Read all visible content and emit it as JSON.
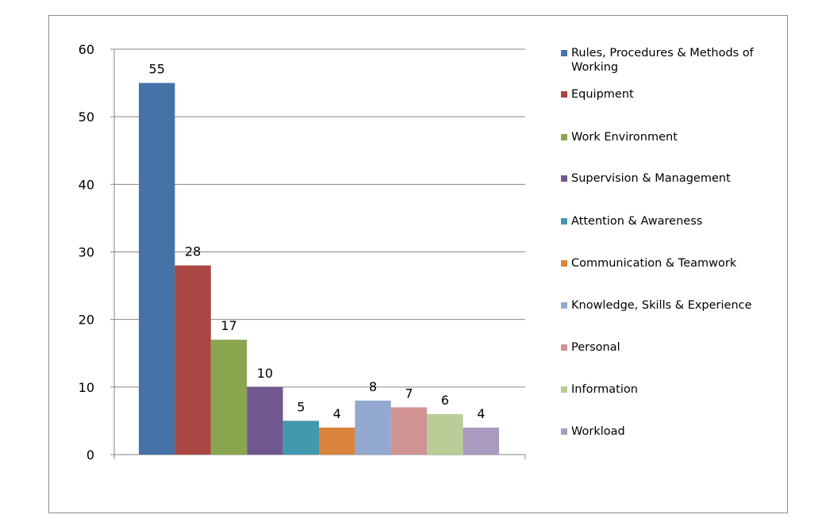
{
  "chart_data": {
    "type": "bar",
    "title": "",
    "xlabel": "",
    "ylabel": "",
    "ylim": [
      0,
      60
    ],
    "yticks": [
      0,
      10,
      20,
      30,
      40,
      50,
      60
    ],
    "grid": true,
    "legend_position": "right",
    "series": [
      {
        "name": "Rules, Procedures & Methods of Working",
        "value": 55,
        "color": "#4572A7"
      },
      {
        "name": "Equipment",
        "value": 28,
        "color": "#AA4643"
      },
      {
        "name": "Work Environment",
        "value": 17,
        "color": "#89A54E"
      },
      {
        "name": "Supervision & Management",
        "value": 10,
        "color": "#71588F"
      },
      {
        "name": "Attention & Awareness",
        "value": 5,
        "color": "#4198AF"
      },
      {
        "name": "Communication & Teamwork",
        "value": 4,
        "color": "#DB843D"
      },
      {
        "name": "Knowledge, Skills & Experience",
        "value": 8,
        "color": "#93A9CF"
      },
      {
        "name": "Personal",
        "value": 7,
        "color": "#D19392"
      },
      {
        "name": "Information",
        "value": 6,
        "color": "#B9CD96"
      },
      {
        "name": "Workload",
        "value": 4,
        "color": "#A99BBD"
      }
    ]
  }
}
